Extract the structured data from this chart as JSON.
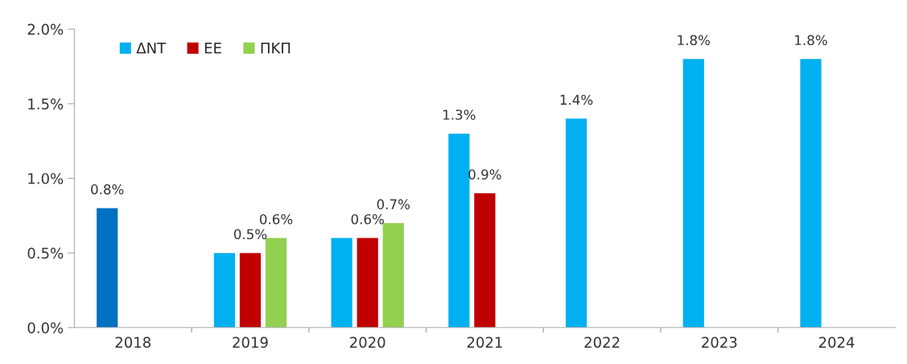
{
  "chart_data": {
    "type": "bar",
    "categories": [
      "2018",
      "2019",
      "2020",
      "2021",
      "2022",
      "2023",
      "2024"
    ],
    "series": [
      {
        "name": "ΔΝΤ",
        "color": "#00b0f0",
        "colors": [
          "#0070c0",
          "#00b0f0",
          "#00b0f0",
          "#00b0f0",
          "#00b0f0",
          "#00b0f0",
          "#00b0f0"
        ],
        "values": [
          0.8,
          0.5,
          0.6,
          1.3,
          1.4,
          1.8,
          1.8
        ],
        "value_labels": [
          "0.8%",
          null,
          null,
          "1.3%",
          "1.4%",
          "1.8%",
          "1.8%"
        ]
      },
      {
        "name": "ΕΕ",
        "color": "#c00000",
        "values": [
          null,
          0.5,
          0.6,
          0.9,
          null,
          null,
          null
        ],
        "value_labels": [
          null,
          "0.5%",
          "0.6%",
          "0.9%",
          null,
          null,
          null
        ]
      },
      {
        "name": "ΠΚΠ",
        "color": "#92d050",
        "values": [
          null,
          0.6,
          0.7,
          null,
          null,
          null,
          null
        ],
        "value_labels": [
          null,
          "0.6%",
          "0.7%",
          null,
          null,
          null,
          null
        ]
      }
    ],
    "ylim": [
      0,
      2.0
    ],
    "yticks": [
      {
        "value": 0,
        "label": "0.0%"
      },
      {
        "value": 0.5,
        "label": "0.5%"
      },
      {
        "value": 1.0,
        "label": "1.0%"
      },
      {
        "value": 1.5,
        "label": "1.5%"
      },
      {
        "value": 2.0,
        "label": "2.0%"
      }
    ],
    "grid": false,
    "legend": "top left"
  }
}
